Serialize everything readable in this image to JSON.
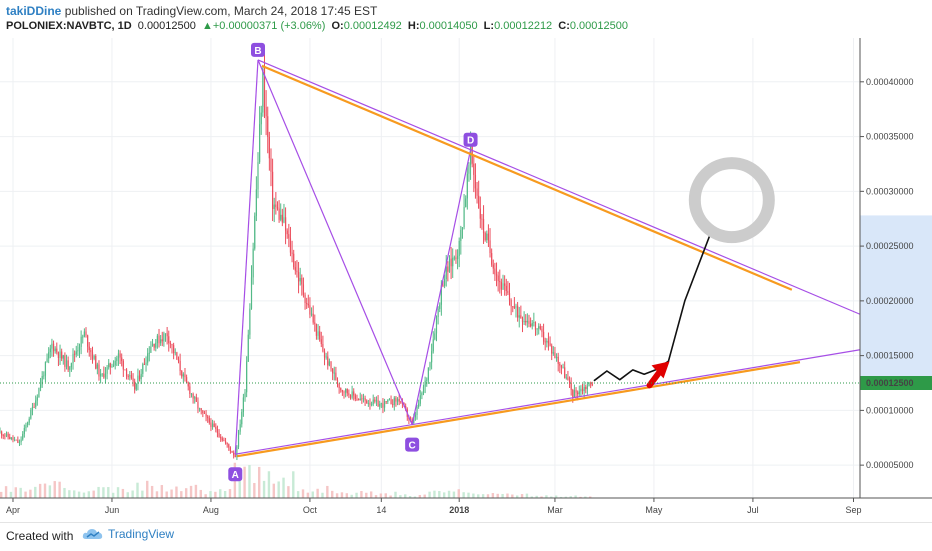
{
  "header": {
    "author": "takiDDine",
    "published_text": "published on TradingView.com, March 24, 2018 17:45 EST",
    "symbol": "POLONIEX:NAVBTC, 1D",
    "price": "0.00012500",
    "change_icon": "triangle-up-icon",
    "change": "+0.00000371 (+3.06%)",
    "open_label": "O:",
    "open": "0.00012492",
    "high_label": "H:",
    "high": "0.00014050",
    "low_label": "L:",
    "low": "0.00012212",
    "close_label": "C:",
    "close": "0.00012500"
  },
  "footer": {
    "created_with": "Created with",
    "brand": "TradingView",
    "brand_icon": "tradingview-cloud-icon"
  },
  "colors": {
    "up_candle": "#53b987",
    "down_candle": "#eb4d5c",
    "pattern_line": "#a64ee6",
    "trend_line": "#f79a1f",
    "point_label_bg": "#8e4fe0",
    "price_tag": "#2e9a48",
    "arrow": "#e00000",
    "circle": "#cccccc"
  },
  "chart_data": {
    "type": "candlestick",
    "symbol": "POLONIEX:NAVBTC",
    "interval": "1D",
    "x_tick_labels": [
      "Apr",
      "Jun",
      "Aug",
      "Oct",
      "14",
      "2018",
      "Mar",
      "May",
      "Jul",
      "Sep"
    ],
    "x_ticks": [
      "2017-04-01",
      "2017-06-01",
      "2017-08-01",
      "2017-10-01",
      "2017-11-14",
      "2018-01-01",
      "2018-03-01",
      "2018-05-01",
      "2018-07-01",
      "2018-09-01"
    ],
    "y_tick_labels": [
      "0.00005000",
      "0.00010000",
      "0.00015000",
      "0.00020000",
      "0.00025000",
      "0.00030000",
      "0.00035000",
      "0.00040000"
    ],
    "y_ticks": [
      5e-05,
      0.0001,
      0.00015,
      0.0002,
      0.00025,
      0.0003,
      0.00035,
      0.0004
    ],
    "ylim": [
      2e-05,
      0.00044
    ],
    "last_price_label": "0.00012500",
    "last_price": 0.000125,
    "price_path": [
      [
        "2017-03-24",
        8e-05
      ],
      [
        "2017-04-05",
        7e-05
      ],
      [
        "2017-04-15",
        0.00011
      ],
      [
        "2017-04-25",
        0.00016
      ],
      [
        "2017-05-05",
        0.00014
      ],
      [
        "2017-05-15",
        0.00017
      ],
      [
        "2017-05-25",
        0.00013
      ],
      [
        "2017-06-05",
        0.00015
      ],
      [
        "2017-06-15",
        0.00012
      ],
      [
        "2017-06-25",
        0.00016
      ],
      [
        "2017-07-05",
        0.00017
      ],
      [
        "2017-07-15",
        0.00013
      ],
      [
        "2017-07-25",
        0.0001
      ],
      [
        "2017-08-05",
        8e-05
      ],
      [
        "2017-08-16",
        5.8e-05
      ],
      [
        "2017-08-22",
        0.00012
      ],
      [
        "2017-08-27",
        0.00025
      ],
      [
        "2017-09-02",
        0.000405
      ],
      [
        "2017-09-08",
        0.00029
      ],
      [
        "2017-09-15",
        0.00027
      ],
      [
        "2017-09-22",
        0.00023
      ],
      [
        "2017-10-01",
        0.00019
      ],
      [
        "2017-10-10",
        0.00015
      ],
      [
        "2017-10-20",
        0.00012
      ],
      [
        "2017-11-01",
        0.00011
      ],
      [
        "2017-11-14",
        0.000105
      ],
      [
        "2017-11-25",
        0.00011
      ],
      [
        "2017-12-03",
        8.7e-05
      ],
      [
        "2017-12-12",
        0.00013
      ],
      [
        "2017-12-22",
        0.00022
      ],
      [
        "2018-01-01",
        0.00025
      ],
      [
        "2018-01-08",
        0.000335
      ],
      [
        "2018-01-15",
        0.00027
      ],
      [
        "2018-01-25",
        0.00022
      ],
      [
        "2018-02-05",
        0.00019
      ],
      [
        "2018-02-15",
        0.00018
      ],
      [
        "2018-02-25",
        0.00016
      ],
      [
        "2018-03-05",
        0.00014
      ],
      [
        "2018-03-12",
        0.000115
      ],
      [
        "2018-03-24",
        0.000125
      ]
    ],
    "pattern_points": [
      {
        "label": "A",
        "date": "2017-08-16",
        "price": 6e-05
      },
      {
        "label": "B",
        "date": "2017-08-30",
        "price": 0.00042
      },
      {
        "label": "C",
        "date": "2017-12-03",
        "price": 8.7e-05
      },
      {
        "label": "D",
        "date": "2018-01-08",
        "price": 0.000338
      }
    ],
    "projection_path": [
      [
        "2018-03-25",
        0.000127
      ],
      [
        "2018-04-02",
        0.000136
      ],
      [
        "2018-04-10",
        0.000128
      ],
      [
        "2018-04-18",
        0.000137
      ],
      [
        "2018-04-25",
        0.000133
      ],
      [
        "2018-05-02",
        0.000137
      ],
      [
        "2018-05-10",
        0.000145
      ],
      [
        "2018-05-20",
        0.0002
      ],
      [
        "2018-06-05",
        0.000262
      ]
    ],
    "volume_relative": [
      0.3,
      0.4,
      0.35,
      0.25,
      0.4,
      0.3,
      0.2,
      1.0,
      0.6,
      0.3,
      0.2,
      0.15,
      0.1,
      0.2,
      0.15,
      0.1,
      0.08,
      0.06
    ]
  }
}
